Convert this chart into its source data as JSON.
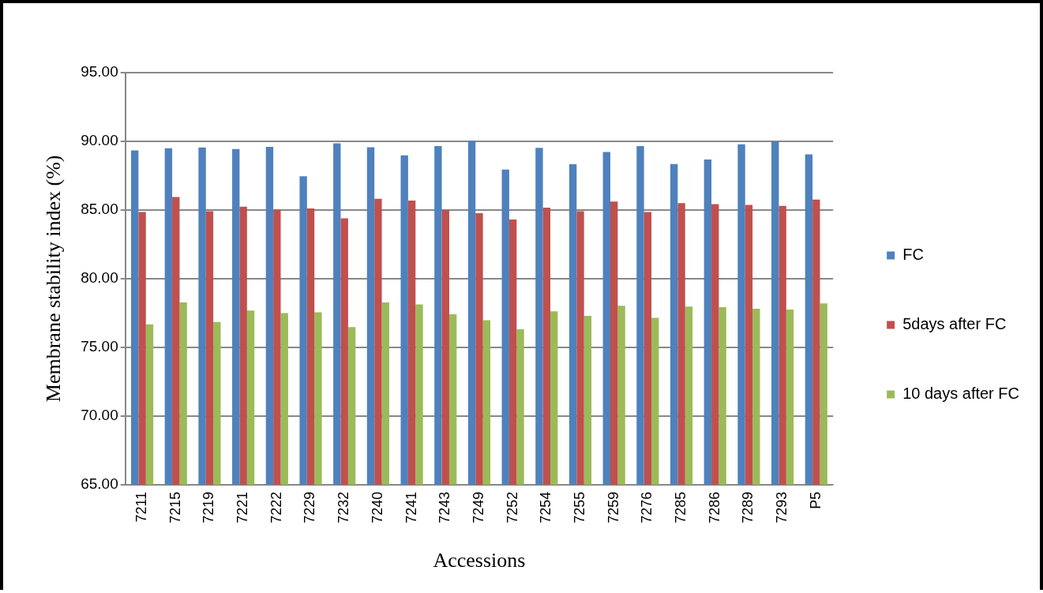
{
  "chart_data": {
    "type": "bar",
    "xlabel": "Accessions",
    "ylabel": "Membrane stability index (%)",
    "categories": [
      "7211",
      "7215",
      "7219",
      "7221",
      "7222",
      "7229",
      "7232",
      "7240",
      "7241",
      "7243",
      "7249",
      "7252",
      "7254",
      "7255",
      "7259",
      "7276",
      "7285",
      "7286",
      "7289",
      "7293",
      "P5"
    ],
    "series": [
      {
        "name": "FC",
        "color": "#4f81bd",
        "values": [
          89.33,
          89.5,
          89.55,
          89.44,
          89.59,
          87.45,
          89.85,
          89.57,
          88.98,
          89.65,
          90.04,
          87.94,
          89.52,
          88.33,
          89.22,
          89.65,
          88.35,
          88.68,
          89.78,
          90.0,
          89.05
        ]
      },
      {
        "name": "5days after FC",
        "color": "#c0504d",
        "values": [
          84.85,
          85.95,
          84.91,
          85.24,
          85.02,
          85.11,
          84.39,
          85.82,
          85.69,
          85.0,
          84.76,
          84.31,
          85.17,
          84.91,
          85.61,
          84.85,
          85.5,
          85.43,
          85.37,
          85.3,
          85.76
        ]
      },
      {
        "name": "10 days after FC",
        "color": "#9bbb59",
        "values": [
          76.67,
          78.27,
          76.84,
          77.68,
          77.49,
          77.55,
          76.47,
          78.27,
          78.12,
          77.4,
          76.97,
          76.32,
          77.62,
          77.29,
          78.03,
          77.14,
          77.97,
          77.92,
          77.81,
          77.75,
          78.2
        ]
      }
    ],
    "ylim": [
      65,
      95
    ],
    "yticks": [
      {
        "value": 65,
        "label": "65.00"
      },
      {
        "value": 70,
        "label": "70.00"
      },
      {
        "value": 75,
        "label": "75.00"
      },
      {
        "value": 80,
        "label": "80.00"
      },
      {
        "value": 85,
        "label": "85.00"
      },
      {
        "value": 90,
        "label": "90.00"
      },
      {
        "value": 95,
        "label": "95.00"
      }
    ],
    "grid": "y",
    "legend": "right"
  }
}
